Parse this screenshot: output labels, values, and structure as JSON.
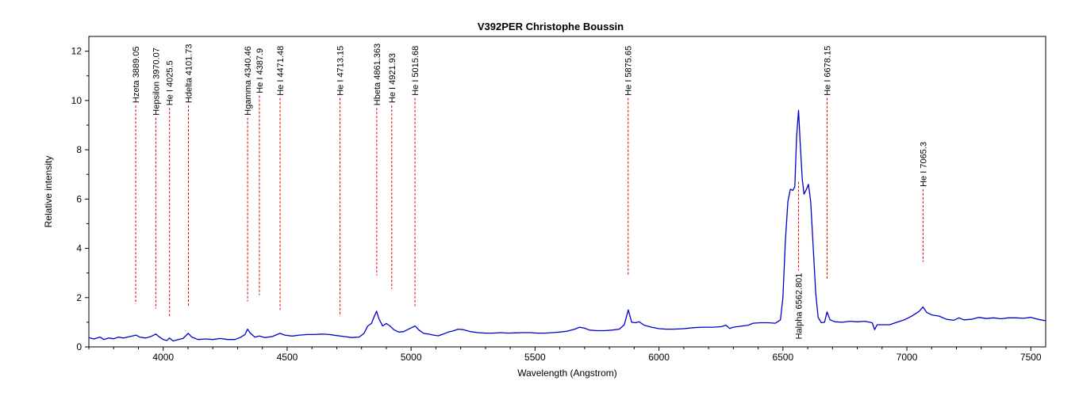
{
  "chart_data": {
    "type": "line",
    "title": "V392PER   Christophe Boussin",
    "xlabel": "Wavelength (Angstrom)",
    "ylabel": "Relative intensity",
    "xlim": [
      3700,
      7560
    ],
    "ylim": [
      0,
      12.6
    ],
    "xticks": [
      4000,
      4500,
      5000,
      5500,
      6000,
      6500,
      7000,
      7500
    ],
    "yticks": [
      0,
      2,
      4,
      6,
      8,
      10,
      12
    ],
    "grid": false,
    "legend": "none",
    "series": [
      {
        "color": "#0000cc",
        "points": [
          [
            3700,
            0.38
          ],
          [
            3720,
            0.32
          ],
          [
            3745,
            0.4
          ],
          [
            3760,
            0.3
          ],
          [
            3780,
            0.36
          ],
          [
            3800,
            0.33
          ],
          [
            3820,
            0.4
          ],
          [
            3840,
            0.36
          ],
          [
            3870,
            0.43
          ],
          [
            3890,
            0.48
          ],
          [
            3905,
            0.4
          ],
          [
            3930,
            0.36
          ],
          [
            3950,
            0.42
          ],
          [
            3970,
            0.52
          ],
          [
            3985,
            0.4
          ],
          [
            4000,
            0.3
          ],
          [
            4015,
            0.26
          ],
          [
            4025,
            0.36
          ],
          [
            4040,
            0.24
          ],
          [
            4060,
            0.3
          ],
          [
            4080,
            0.34
          ],
          [
            4101,
            0.55
          ],
          [
            4115,
            0.4
          ],
          [
            4140,
            0.3
          ],
          [
            4170,
            0.32
          ],
          [
            4200,
            0.3
          ],
          [
            4230,
            0.34
          ],
          [
            4260,
            0.3
          ],
          [
            4290,
            0.3
          ],
          [
            4310,
            0.38
          ],
          [
            4330,
            0.5
          ],
          [
            4340,
            0.72
          ],
          [
            4352,
            0.55
          ],
          [
            4370,
            0.4
          ],
          [
            4388,
            0.44
          ],
          [
            4410,
            0.38
          ],
          [
            4440,
            0.42
          ],
          [
            4471,
            0.55
          ],
          [
            4490,
            0.48
          ],
          [
            4520,
            0.44
          ],
          [
            4550,
            0.48
          ],
          [
            4580,
            0.5
          ],
          [
            4610,
            0.5
          ],
          [
            4640,
            0.52
          ],
          [
            4670,
            0.5
          ],
          [
            4700,
            0.46
          ],
          [
            4730,
            0.42
          ],
          [
            4760,
            0.38
          ],
          [
            4790,
            0.4
          ],
          [
            4810,
            0.55
          ],
          [
            4825,
            0.85
          ],
          [
            4840,
            0.95
          ],
          [
            4852,
            1.25
          ],
          [
            4861,
            1.45
          ],
          [
            4870,
            1.15
          ],
          [
            4885,
            0.85
          ],
          [
            4900,
            0.95
          ],
          [
            4915,
            0.85
          ],
          [
            4930,
            0.7
          ],
          [
            4950,
            0.6
          ],
          [
            4970,
            0.62
          ],
          [
            4990,
            0.72
          ],
          [
            5016,
            0.85
          ],
          [
            5030,
            0.7
          ],
          [
            5050,
            0.55
          ],
          [
            5070,
            0.52
          ],
          [
            5090,
            0.48
          ],
          [
            5110,
            0.45
          ],
          [
            5130,
            0.52
          ],
          [
            5150,
            0.6
          ],
          [
            5170,
            0.65
          ],
          [
            5190,
            0.72
          ],
          [
            5210,
            0.7
          ],
          [
            5240,
            0.62
          ],
          [
            5270,
            0.58
          ],
          [
            5300,
            0.56
          ],
          [
            5330,
            0.56
          ],
          [
            5360,
            0.58
          ],
          [
            5390,
            0.56
          ],
          [
            5420,
            0.57
          ],
          [
            5450,
            0.58
          ],
          [
            5480,
            0.58
          ],
          [
            5510,
            0.56
          ],
          [
            5540,
            0.56
          ],
          [
            5570,
            0.58
          ],
          [
            5600,
            0.6
          ],
          [
            5630,
            0.64
          ],
          [
            5660,
            0.72
          ],
          [
            5680,
            0.8
          ],
          [
            5700,
            0.76
          ],
          [
            5720,
            0.68
          ],
          [
            5750,
            0.66
          ],
          [
            5780,
            0.66
          ],
          [
            5810,
            0.68
          ],
          [
            5840,
            0.72
          ],
          [
            5860,
            0.9
          ],
          [
            5876,
            1.5
          ],
          [
            5890,
            1.0
          ],
          [
            5905,
            0.98
          ],
          [
            5920,
            1.02
          ],
          [
            5940,
            0.88
          ],
          [
            5970,
            0.8
          ],
          [
            6000,
            0.74
          ],
          [
            6030,
            0.72
          ],
          [
            6060,
            0.72
          ],
          [
            6100,
            0.74
          ],
          [
            6140,
            0.78
          ],
          [
            6180,
            0.8
          ],
          [
            6220,
            0.8
          ],
          [
            6250,
            0.82
          ],
          [
            6270,
            0.88
          ],
          [
            6285,
            0.75
          ],
          [
            6300,
            0.8
          ],
          [
            6330,
            0.84
          ],
          [
            6360,
            0.88
          ],
          [
            6380,
            0.96
          ],
          [
            6410,
            0.98
          ],
          [
            6440,
            0.98
          ],
          [
            6470,
            0.96
          ],
          [
            6490,
            1.1
          ],
          [
            6500,
            2.0
          ],
          [
            6510,
            4.3
          ],
          [
            6520,
            5.9
          ],
          [
            6530,
            6.4
          ],
          [
            6540,
            6.35
          ],
          [
            6548,
            6.5
          ],
          [
            6555,
            8.5
          ],
          [
            6563,
            9.6
          ],
          [
            6570,
            8.2
          ],
          [
            6578,
            6.8
          ],
          [
            6585,
            6.2
          ],
          [
            6595,
            6.4
          ],
          [
            6603,
            6.6
          ],
          [
            6612,
            5.9
          ],
          [
            6622,
            4.1
          ],
          [
            6632,
            2.2
          ],
          [
            6642,
            1.2
          ],
          [
            6655,
            0.98
          ],
          [
            6668,
            1.0
          ],
          [
            6678,
            1.42
          ],
          [
            6690,
            1.1
          ],
          [
            6710,
            1.02
          ],
          [
            6740,
            1.0
          ],
          [
            6770,
            1.04
          ],
          [
            6800,
            1.02
          ],
          [
            6830,
            1.04
          ],
          [
            6860,
            0.98
          ],
          [
            6870,
            0.7
          ],
          [
            6880,
            0.9
          ],
          [
            6900,
            0.9
          ],
          [
            6930,
            0.9
          ],
          [
            6960,
            1.0
          ],
          [
            6990,
            1.1
          ],
          [
            7020,
            1.25
          ],
          [
            7050,
            1.45
          ],
          [
            7065,
            1.62
          ],
          [
            7080,
            1.4
          ],
          [
            7100,
            1.3
          ],
          [
            7130,
            1.25
          ],
          [
            7160,
            1.12
          ],
          [
            7190,
            1.08
          ],
          [
            7210,
            1.18
          ],
          [
            7230,
            1.1
          ],
          [
            7260,
            1.12
          ],
          [
            7290,
            1.2
          ],
          [
            7320,
            1.15
          ],
          [
            7350,
            1.18
          ],
          [
            7380,
            1.14
          ],
          [
            7410,
            1.18
          ],
          [
            7440,
            1.18
          ],
          [
            7470,
            1.16
          ],
          [
            7500,
            1.2
          ],
          [
            7530,
            1.12
          ],
          [
            7560,
            1.06
          ]
        ]
      }
    ],
    "annotations": [
      {
        "label": "Hzeta 3889.05",
        "x": 3889.05,
        "y_top": 9.8,
        "y_bottom": 1.75
      },
      {
        "label": "Hepsilon 3970.07",
        "x": 3970.07,
        "y_top": 9.3,
        "y_bottom": 1.55
      },
      {
        "label": "He I 4025.5",
        "x": 4025.5,
        "y_top": 9.7,
        "y_bottom": 1.2
      },
      {
        "label": "Hdelta 4101.73",
        "x": 4101.73,
        "y_top": 9.8,
        "y_bottom": 1.6
      },
      {
        "label": "Hgamma 4340.46",
        "x": 4340.46,
        "y_top": 9.3,
        "y_bottom": 1.85
      },
      {
        "label": "He I 4387.9",
        "x": 4387.9,
        "y_top": 10.2,
        "y_bottom": 2.1
      },
      {
        "label": "He I 4471.48",
        "x": 4471.48,
        "y_top": 10.1,
        "y_bottom": 1.5
      },
      {
        "label": "He I 4713.15",
        "x": 4713.15,
        "y_top": 10.1,
        "y_bottom": 1.25
      },
      {
        "label": "Hbeta 4861.363",
        "x": 4861.363,
        "y_top": 9.7,
        "y_bottom": 2.9
      },
      {
        "label": "He I 4921.93",
        "x": 4921.93,
        "y_top": 9.8,
        "y_bottom": 2.35
      },
      {
        "label": "He I 5015.68",
        "x": 5015.68,
        "y_top": 10.1,
        "y_bottom": 1.65
      },
      {
        "label": "He I 5875.65",
        "x": 5875.65,
        "y_top": 10.1,
        "y_bottom": 2.9
      },
      {
        "label": "He I 6678.15",
        "x": 6678.15,
        "y_top": 10.1,
        "y_bottom": 2.75
      },
      {
        "label": "He I 7065.3",
        "x": 7065.3,
        "y_top": 6.4,
        "y_bottom": 3.45
      },
      {
        "label": "Halpha 6562.801",
        "x": 6562.801,
        "y_top": 6.7,
        "y_bottom": 3.1,
        "label_below": true
      }
    ]
  }
}
